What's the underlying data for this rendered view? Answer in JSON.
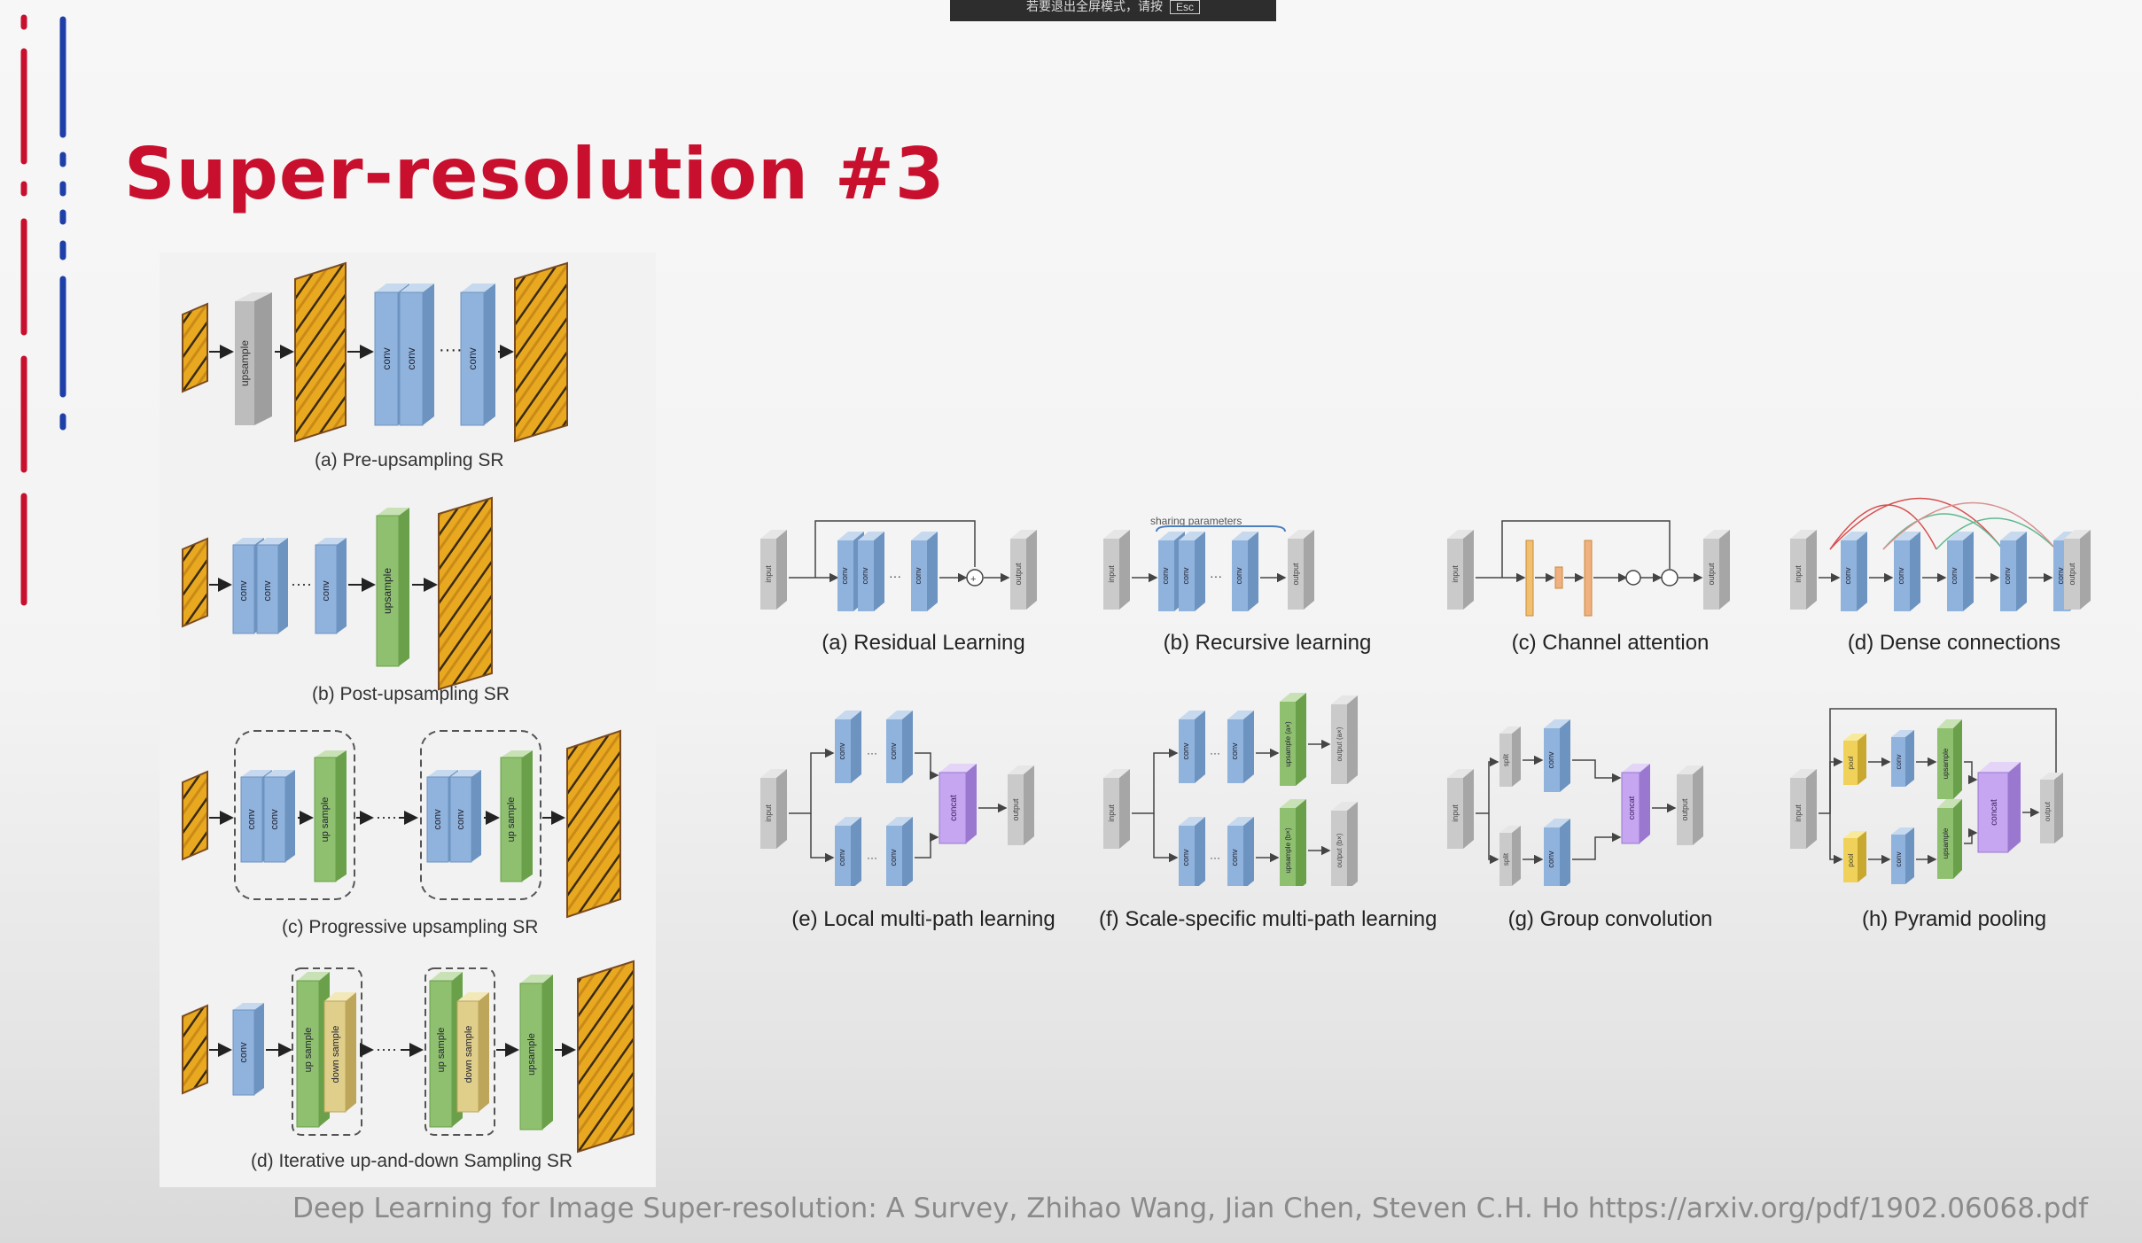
{
  "overlay_bar": {
    "text": "若要退出全屏模式，请按",
    "key": "Esc"
  },
  "slide": {
    "title": "Super-resolution #3",
    "citation": "Deep Learning for Image Super-resolution: A Survey, Zhihao Wang, Jian Chen, Steven C.H. Ho https://arxiv.org/pdf/1902.06068.pdf"
  },
  "left_figure": {
    "captions": [
      "(a) Pre-upsampling SR",
      "(b) Post-upsampling SR",
      "(c) Progressive upsampling SR",
      "(d) Iterative up-and-down Sampling SR"
    ],
    "block_labels": {
      "upsample": "upsample",
      "conv": "conv",
      "up_sample": "up sample",
      "down_sample": "down sample"
    }
  },
  "right_figure": {
    "row1_captions": [
      "(a) Residual Learning",
      "(b) Recursive learning",
      "(c) Channel attention",
      "(d) Dense connections"
    ],
    "row2_captions": [
      "(e) Local multi-path learning",
      "(f) Scale-specific multi-path learning",
      "(g) Group convolution",
      "(h) Pyramid pooling"
    ],
    "sharing_parameters": "sharing parameters",
    "block_labels": {
      "input": "input",
      "output": "output",
      "conv": "conv",
      "concat": "concat",
      "pool": "pool",
      "split": "split",
      "upsample": "upsample",
      "upsample_ax": "upsample (a×)",
      "upsample_bx": "upsample (b×)",
      "output_ax": "output (a×)",
      "output_bx": "output (b×)"
    }
  },
  "colors": {
    "title": "#c8102e",
    "conv": "#8fb3dc",
    "upsample": "#8fc06f",
    "downsample": "#e0cf8a",
    "input": "#c9c9c9",
    "concat": "#c6a6f0",
    "pool": "#f0d25a",
    "deco_red": "#c8102e",
    "deco_blue": "#1f3fa8"
  }
}
